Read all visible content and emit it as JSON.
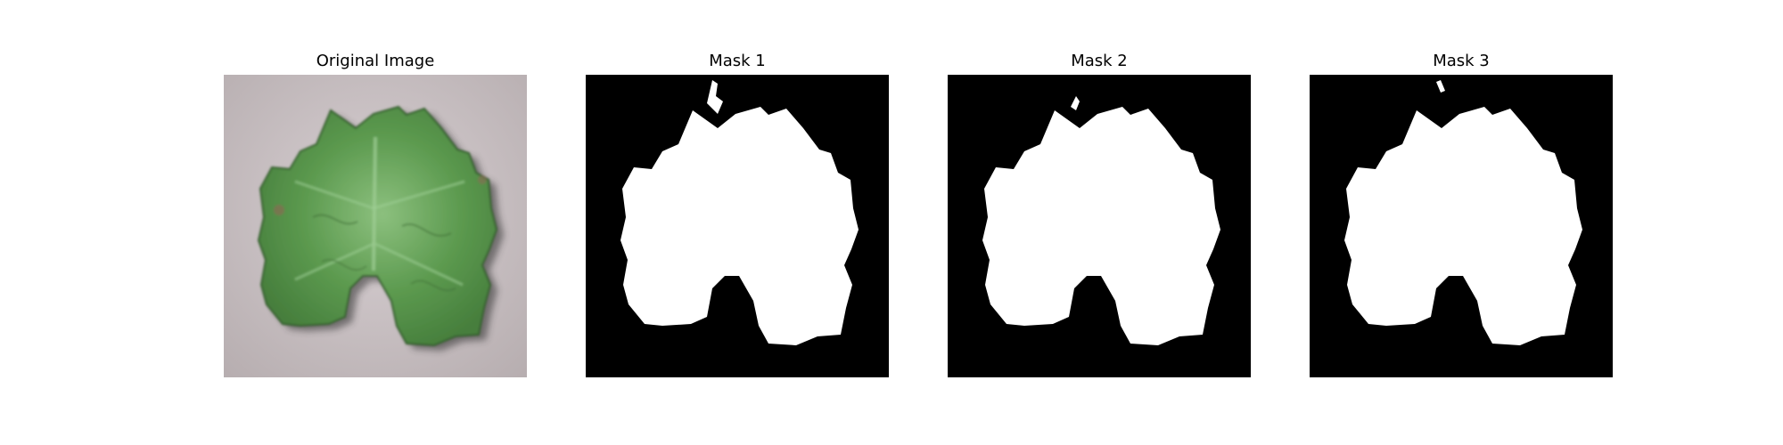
{
  "figure": {
    "panels": [
      {
        "title": "Original Image",
        "kind": "photo"
      },
      {
        "title": "Mask 1",
        "kind": "mask"
      },
      {
        "title": "Mask 2",
        "kind": "mask"
      },
      {
        "title": "Mask 3",
        "kind": "mask"
      }
    ]
  },
  "colors": {
    "background": "#ffffff",
    "photo_background": "#c9c1c3",
    "leaf_green": "#5c9a4f",
    "leaf_highlight": "#8cc07e",
    "leaf_shadow": "#355f2d",
    "mask_background": "#000000",
    "mask_foreground": "#ffffff"
  }
}
